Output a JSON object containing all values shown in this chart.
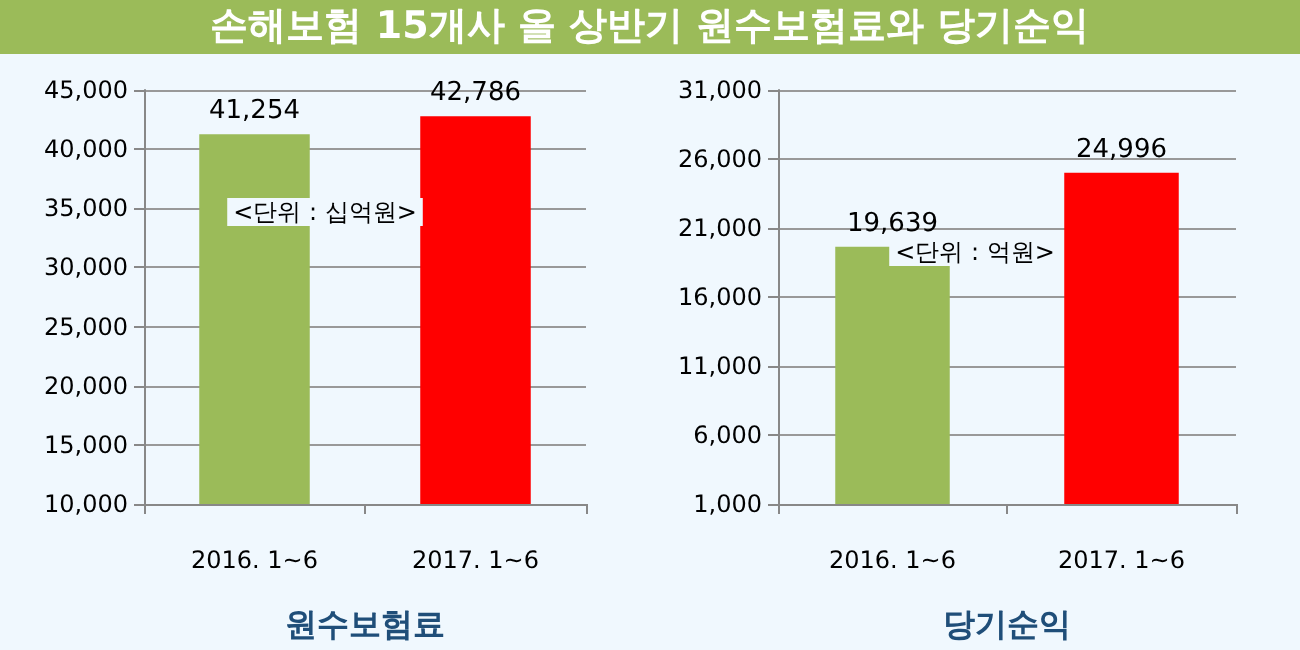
{
  "chart_data": [
    {
      "type": "bar",
      "title": "손해보험 15개사 올 상반기 원수보험료와 당기순익",
      "xlabel": "원수보험료",
      "categories": [
        "2016. 1~6",
        "2017. 1~6"
      ],
      "values": [
        41254,
        42786
      ],
      "value_labels": [
        "41,254",
        "42,786"
      ],
      "colors": [
        "#9bbb59",
        "#ff0000"
      ],
      "ylim": [
        10000,
        45000
      ],
      "yticks": [
        {
          "value": 10000,
          "label": "10,000"
        },
        {
          "value": 15000,
          "label": "15,000"
        },
        {
          "value": 20000,
          "label": "20,000"
        },
        {
          "value": 25000,
          "label": "25,000"
        },
        {
          "value": 30000,
          "label": "30,000"
        },
        {
          "value": 35000,
          "label": "35,000"
        },
        {
          "value": 40000,
          "label": "40,000"
        },
        {
          "value": 45000,
          "label": "45,000"
        }
      ],
      "grid": "y",
      "annotations": [
        "<단위 : 십억원>"
      ]
    },
    {
      "type": "bar",
      "xlabel": "당기순익",
      "categories": [
        "2016. 1~6",
        "2017. 1~6"
      ],
      "values": [
        19639,
        24996
      ],
      "value_labels": [
        "19,639",
        "24,996"
      ],
      "colors": [
        "#9bbb59",
        "#ff0000"
      ],
      "ylim": [
        1000,
        31000
      ],
      "yticks": [
        {
          "value": 1000,
          "label": "1,000"
        },
        {
          "value": 6000,
          "label": "6,000"
        },
        {
          "value": 11000,
          "label": "11,000"
        },
        {
          "value": 16000,
          "label": "16,000"
        },
        {
          "value": 21000,
          "label": "21,000"
        },
        {
          "value": 26000,
          "label": "26,000"
        },
        {
          "value": 31000,
          "label": "31,000"
        }
      ],
      "grid": "y",
      "annotations": [
        "<단위 : 억원>"
      ]
    }
  ]
}
